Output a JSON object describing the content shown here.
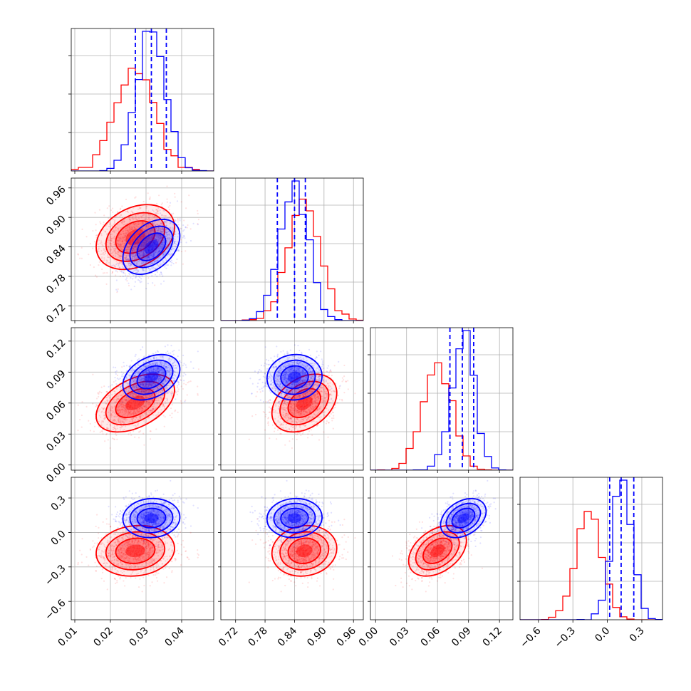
{
  "chart_data": {
    "type": "corner",
    "title": "",
    "colors": {
      "series_a": "#0000ff",
      "series_b": "#ff0000",
      "grid": "#b0b0b0",
      "axis": "#000000"
    },
    "parameters": [
      {
        "range": [
          0.009,
          0.049
        ],
        "ticks": [
          0.01,
          0.02,
          0.03,
          0.04
        ],
        "tick_labels": [
          "0.01",
          "0.02",
          "0.03",
          "0.04"
        ]
      },
      {
        "range": [
          0.69,
          0.98
        ],
        "ticks": [
          0.72,
          0.78,
          0.84,
          0.9,
          0.96
        ],
        "tick_labels": [
          "0.72",
          "0.78",
          "0.84",
          "0.90",
          "0.96"
        ]
      },
      {
        "range": [
          -0.005,
          0.133
        ],
        "ticks": [
          0.0,
          0.03,
          0.06,
          0.09,
          0.12
        ],
        "tick_labels": [
          "0.00",
          "0.03",
          "0.06",
          "0.09",
          "0.12"
        ]
      },
      {
        "range": [
          -0.76,
          0.48
        ],
        "ticks": [
          -0.6,
          -0.3,
          0.0,
          0.3
        ],
        "tick_labels": [
          "−0.6",
          "−0.3",
          "0.0",
          "0.3"
        ]
      }
    ],
    "series": [
      {
        "color": "#0000ff",
        "mean": [
          0.0315,
          0.84,
          0.085,
          0.125
        ],
        "std": [
          0.004,
          0.028,
          0.011,
          0.085
        ],
        "corr": [
          [
            1,
            0.4,
            0.35,
            0.05
          ],
          [
            0.4,
            1,
            0.05,
            0.05
          ],
          [
            0.35,
            0.05,
            1,
            0.35
          ],
          [
            0.05,
            0.05,
            0.35,
            1
          ]
        ],
        "quantiles": [
          [
            0.027,
            0.0315,
            0.0357
          ],
          [
            0.805,
            0.84,
            0.862
          ],
          [
            0.072,
            0.084,
            0.095
          ],
          [
            0.02,
            0.12,
            0.23
          ]
        ]
      },
      {
        "color": "#ff0000",
        "mean": [
          0.027,
          0.86,
          0.06,
          -0.16
        ],
        "std": [
          0.0055,
          0.033,
          0.014,
          0.11
        ],
        "corr": [
          [
            1,
            0.3,
            0.45,
            0.1
          ],
          [
            0.3,
            1,
            0.35,
            0.1
          ],
          [
            0.45,
            0.35,
            1,
            0.4
          ],
          [
            0.1,
            0.1,
            0.4,
            1
          ]
        ]
      }
    ]
  }
}
